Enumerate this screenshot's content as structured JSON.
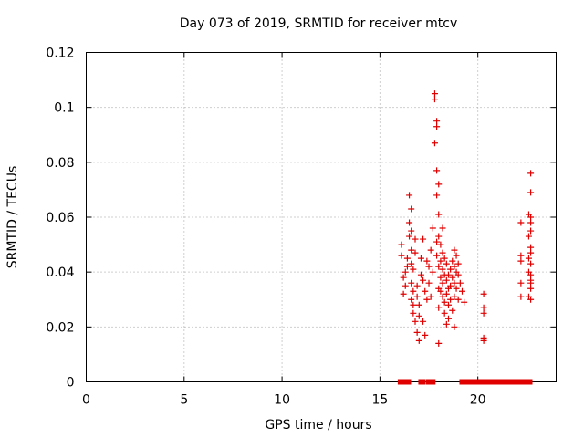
{
  "chart_data": {
    "type": "scatter",
    "title": "Day 073 of 2019, SRMTID for receiver mtcv",
    "xlabel": "GPS time / hours",
    "ylabel": "SRMTID / TECUs",
    "xlim": [
      0,
      24
    ],
    "ylim": [
      0,
      0.12
    ],
    "x_ticks": [
      "0",
      "5",
      "10",
      "15",
      "20"
    ],
    "y_ticks": [
      "0",
      "0.02",
      "0.04",
      "0.06",
      "0.08",
      "0.1",
      "0.12"
    ],
    "grid": true,
    "marker": "plus",
    "color": "#e00000",
    "points": [
      [
        16.1,
        0.05
      ],
      [
        16.1,
        0.046
      ],
      [
        16.2,
        0.038
      ],
      [
        16.2,
        0.032
      ],
      [
        16.3,
        0.035
      ],
      [
        16.3,
        0.04
      ],
      [
        16.4,
        0.042
      ],
      [
        16.4,
        0.045
      ],
      [
        16.5,
        0.058
      ],
      [
        16.5,
        0.053
      ],
      [
        16.5,
        0.068
      ],
      [
        16.6,
        0.063
      ],
      [
        16.6,
        0.055
      ],
      [
        16.6,
        0.048
      ],
      [
        16.6,
        0.043
      ],
      [
        16.6,
        0.036
      ],
      [
        16.6,
        0.03
      ],
      [
        16.7,
        0.028
      ],
      [
        16.7,
        0.025
      ],
      [
        16.7,
        0.033
      ],
      [
        16.7,
        0.041
      ],
      [
        16.8,
        0.052
      ],
      [
        16.8,
        0.047
      ],
      [
        16.8,
        0.022
      ],
      [
        16.9,
        0.018
      ],
      [
        16.9,
        0.035
      ],
      [
        16.9,
        0.031
      ],
      [
        17.0,
        0.024
      ],
      [
        17.0,
        0.015
      ],
      [
        17.0,
        0.028
      ],
      [
        17.1,
        0.045
      ],
      [
        17.1,
        0.039
      ],
      [
        17.2,
        0.052
      ],
      [
        17.2,
        0.037
      ],
      [
        17.2,
        0.022
      ],
      [
        17.3,
        0.033
      ],
      [
        17.3,
        0.017
      ],
      [
        17.4,
        0.044
      ],
      [
        17.4,
        0.03
      ],
      [
        17.5,
        0.042
      ],
      [
        17.5,
        0.036
      ],
      [
        17.6,
        0.048
      ],
      [
        17.6,
        0.031
      ],
      [
        17.7,
        0.04
      ],
      [
        17.7,
        0.056
      ],
      [
        17.8,
        0.087
      ],
      [
        17.8,
        0.103
      ],
      [
        17.8,
        0.105
      ],
      [
        17.9,
        0.093
      ],
      [
        17.9,
        0.095
      ],
      [
        17.9,
        0.077
      ],
      [
        17.9,
        0.068
      ],
      [
        17.9,
        0.051
      ],
      [
        17.9,
        0.046
      ],
      [
        18.0,
        0.061
      ],
      [
        18.0,
        0.072
      ],
      [
        18.0,
        0.053
      ],
      [
        18.0,
        0.042
      ],
      [
        18.0,
        0.034
      ],
      [
        18.0,
        0.027
      ],
      [
        18.0,
        0.014
      ],
      [
        18.1,
        0.05
      ],
      [
        18.1,
        0.044
      ],
      [
        18.1,
        0.038
      ],
      [
        18.1,
        0.033
      ],
      [
        18.2,
        0.056
      ],
      [
        18.2,
        0.047
      ],
      [
        18.2,
        0.041
      ],
      [
        18.2,
        0.036
      ],
      [
        18.2,
        0.031
      ],
      [
        18.3,
        0.045
      ],
      [
        18.3,
        0.039
      ],
      [
        18.3,
        0.029
      ],
      [
        18.3,
        0.025
      ],
      [
        18.4,
        0.043
      ],
      [
        18.4,
        0.037
      ],
      [
        18.4,
        0.032
      ],
      [
        18.4,
        0.021
      ],
      [
        18.5,
        0.039
      ],
      [
        18.5,
        0.034
      ],
      [
        18.5,
        0.028
      ],
      [
        18.5,
        0.023
      ],
      [
        18.6,
        0.041
      ],
      [
        18.6,
        0.035
      ],
      [
        18.6,
        0.03
      ],
      [
        18.7,
        0.044
      ],
      [
        18.7,
        0.038
      ],
      [
        18.7,
        0.026
      ],
      [
        18.8,
        0.048
      ],
      [
        18.8,
        0.042
      ],
      [
        18.8,
        0.036
      ],
      [
        18.8,
        0.031
      ],
      [
        18.8,
        0.02
      ],
      [
        18.9,
        0.046
      ],
      [
        18.9,
        0.04
      ],
      [
        18.9,
        0.034
      ],
      [
        19.0,
        0.043
      ],
      [
        19.0,
        0.039
      ],
      [
        19.0,
        0.03
      ],
      [
        19.1,
        0.036
      ],
      [
        19.2,
        0.033
      ],
      [
        19.3,
        0.029
      ],
      [
        20.3,
        0.032
      ],
      [
        20.3,
        0.027
      ],
      [
        20.3,
        0.025
      ],
      [
        20.3,
        0.016
      ],
      [
        20.3,
        0.015
      ],
      [
        22.2,
        0.058
      ],
      [
        22.2,
        0.046
      ],
      [
        22.2,
        0.044
      ],
      [
        22.2,
        0.036
      ],
      [
        22.2,
        0.031
      ],
      [
        22.6,
        0.061
      ],
      [
        22.6,
        0.053
      ],
      [
        22.6,
        0.045
      ],
      [
        22.6,
        0.04
      ],
      [
        22.6,
        0.031
      ],
      [
        22.7,
        0.076
      ],
      [
        22.7,
        0.069
      ],
      [
        22.7,
        0.06
      ],
      [
        22.7,
        0.058
      ],
      [
        22.7,
        0.055
      ],
      [
        22.7,
        0.049
      ],
      [
        22.7,
        0.047
      ],
      [
        22.7,
        0.043
      ],
      [
        22.7,
        0.039
      ],
      [
        22.7,
        0.037
      ],
      [
        22.7,
        0.036
      ],
      [
        22.7,
        0.034
      ],
      [
        22.7,
        0.03
      ]
    ],
    "zero_segments": [
      [
        16.05,
        16.45
      ],
      [
        17.1,
        17.2
      ],
      [
        17.5,
        17.7
      ],
      [
        19.2,
        22.65
      ]
    ]
  }
}
